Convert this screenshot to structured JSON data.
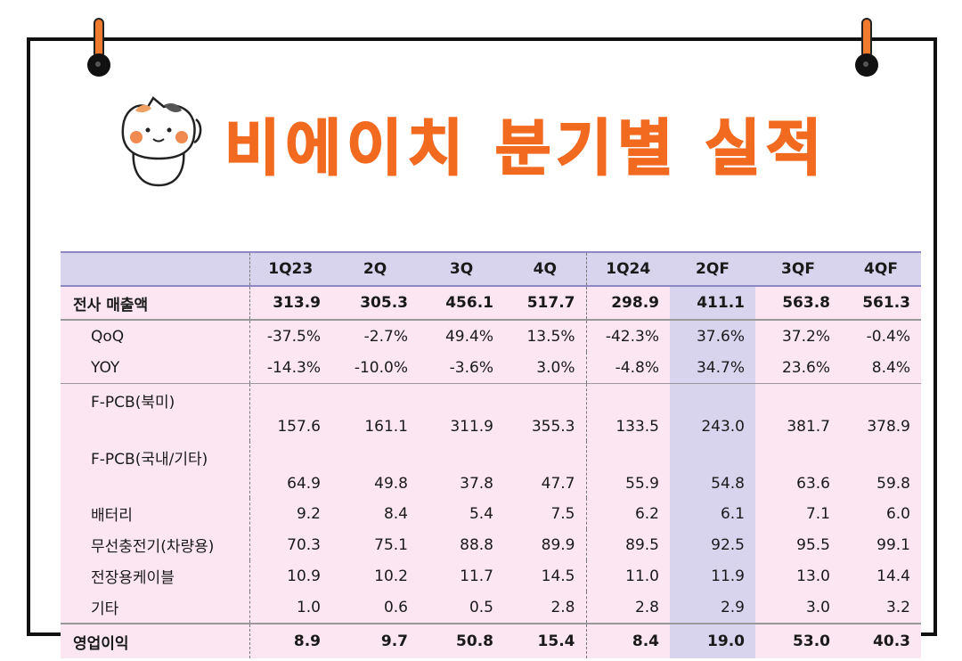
{
  "title": "비에이치 분기별 실적",
  "table": {
    "columns": [
      "",
      "1Q23",
      "2Q",
      "3Q",
      "4Q",
      "1Q24",
      "2QF",
      "3QF",
      "4QF"
    ],
    "rows": [
      {
        "label": "전사 매출액",
        "values": [
          "313.9",
          "305.3",
          "456.1",
          "517.7",
          "298.9",
          "411.1",
          "563.8",
          "561.3"
        ]
      },
      {
        "label": "QoQ",
        "values": [
          "-37.5%",
          "-2.7%",
          "49.4%",
          "13.5%",
          "-42.3%",
          "37.6%",
          "37.2%",
          "-0.4%"
        ]
      },
      {
        "label": "YOY",
        "values": [
          "-14.3%",
          "-10.0%",
          "-3.6%",
          "3.0%",
          "-4.8%",
          "34.7%",
          "23.6%",
          "8.4%"
        ]
      },
      {
        "label": "F-PCB(북미)",
        "values": [
          "157.6",
          "161.1",
          "311.9",
          "355.3",
          "133.5",
          "243.0",
          "381.7",
          "378.9"
        ]
      },
      {
        "label": "F-PCB(국내/기타)",
        "values": [
          "64.9",
          "49.8",
          "37.8",
          "47.7",
          "55.9",
          "54.8",
          "63.6",
          "59.8"
        ]
      },
      {
        "label": "배터리",
        "values": [
          "9.2",
          "8.4",
          "5.4",
          "7.5",
          "6.2",
          "6.1",
          "7.1",
          "6.0"
        ]
      },
      {
        "label": "무선충전기(차량용)",
        "values": [
          "70.3",
          "75.1",
          "88.8",
          "89.9",
          "89.5",
          "92.5",
          "95.5",
          "99.1"
        ]
      },
      {
        "label": "전장용케이블",
        "values": [
          "10.9",
          "10.2",
          "11.7",
          "14.5",
          "11.0",
          "11.9",
          "13.0",
          "14.4"
        ]
      },
      {
        "label": "기타",
        "values": [
          "1.0",
          "0.6",
          "0.5",
          "2.8",
          "2.8",
          "2.9",
          "3.0",
          "3.2"
        ]
      },
      {
        "label": "영업이익",
        "values": [
          "8.9",
          "9.7",
          "50.8",
          "15.4",
          "8.4",
          "19.0",
          "53.0",
          "40.3"
        ]
      }
    ]
  },
  "colors": {
    "title": "#f26a1f",
    "header_bg": "#d8d4ee",
    "row_bg": "#fbe6f1",
    "highlight_col": "#d8d4ee"
  }
}
